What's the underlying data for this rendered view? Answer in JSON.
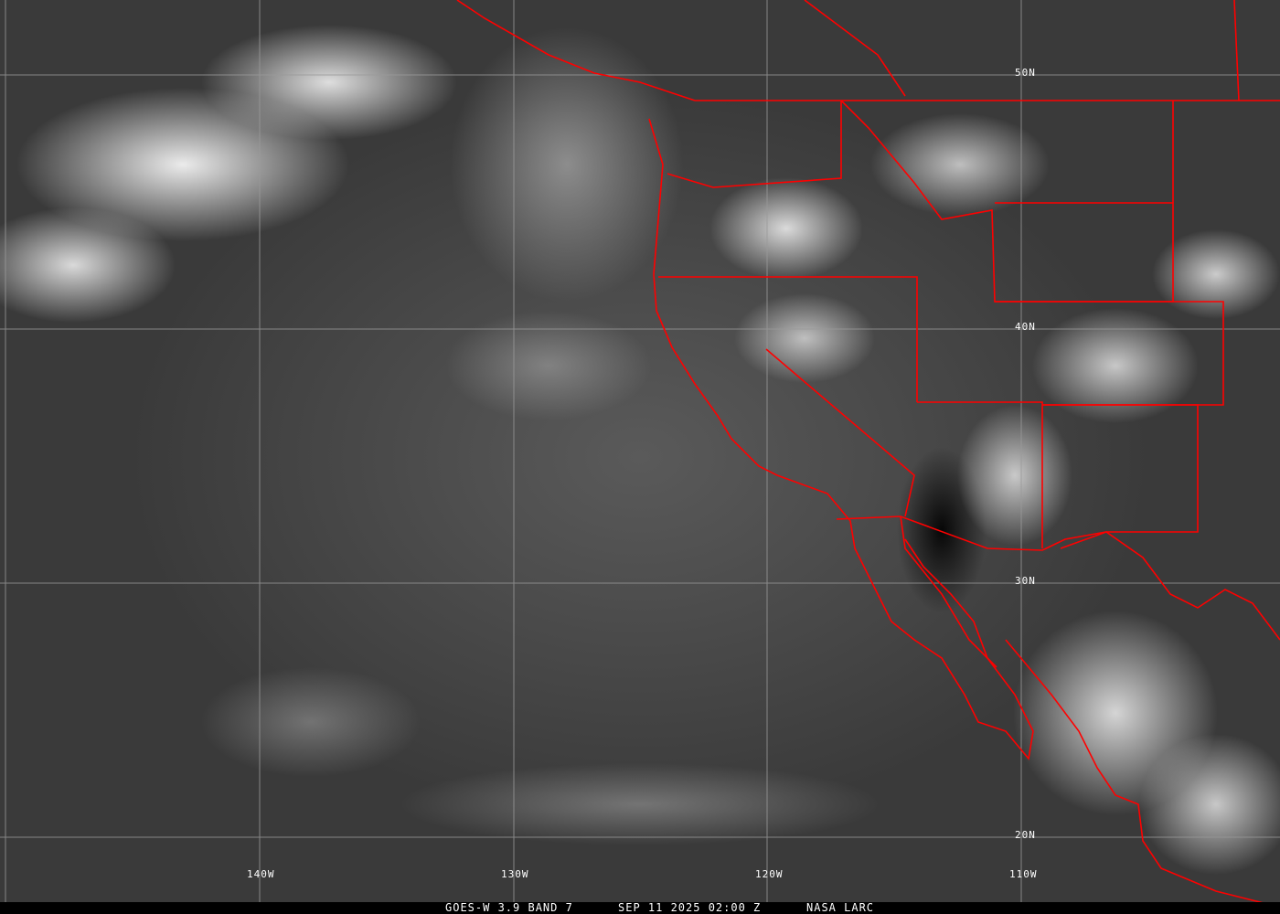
{
  "caption": {
    "product": "GOES-W 3.9 BAND 7",
    "datetime": "SEP 11 2025 02:00 Z",
    "source": "NASA LARC"
  },
  "grid": {
    "longitude_labels": [
      "140W",
      "130W",
      "120W",
      "110W"
    ],
    "latitude_labels": [
      "50N",
      "40N",
      "30N",
      "20N"
    ]
  },
  "colors": {
    "boundaries": "#ff0000",
    "gridlines": "#9a9a9a"
  }
}
